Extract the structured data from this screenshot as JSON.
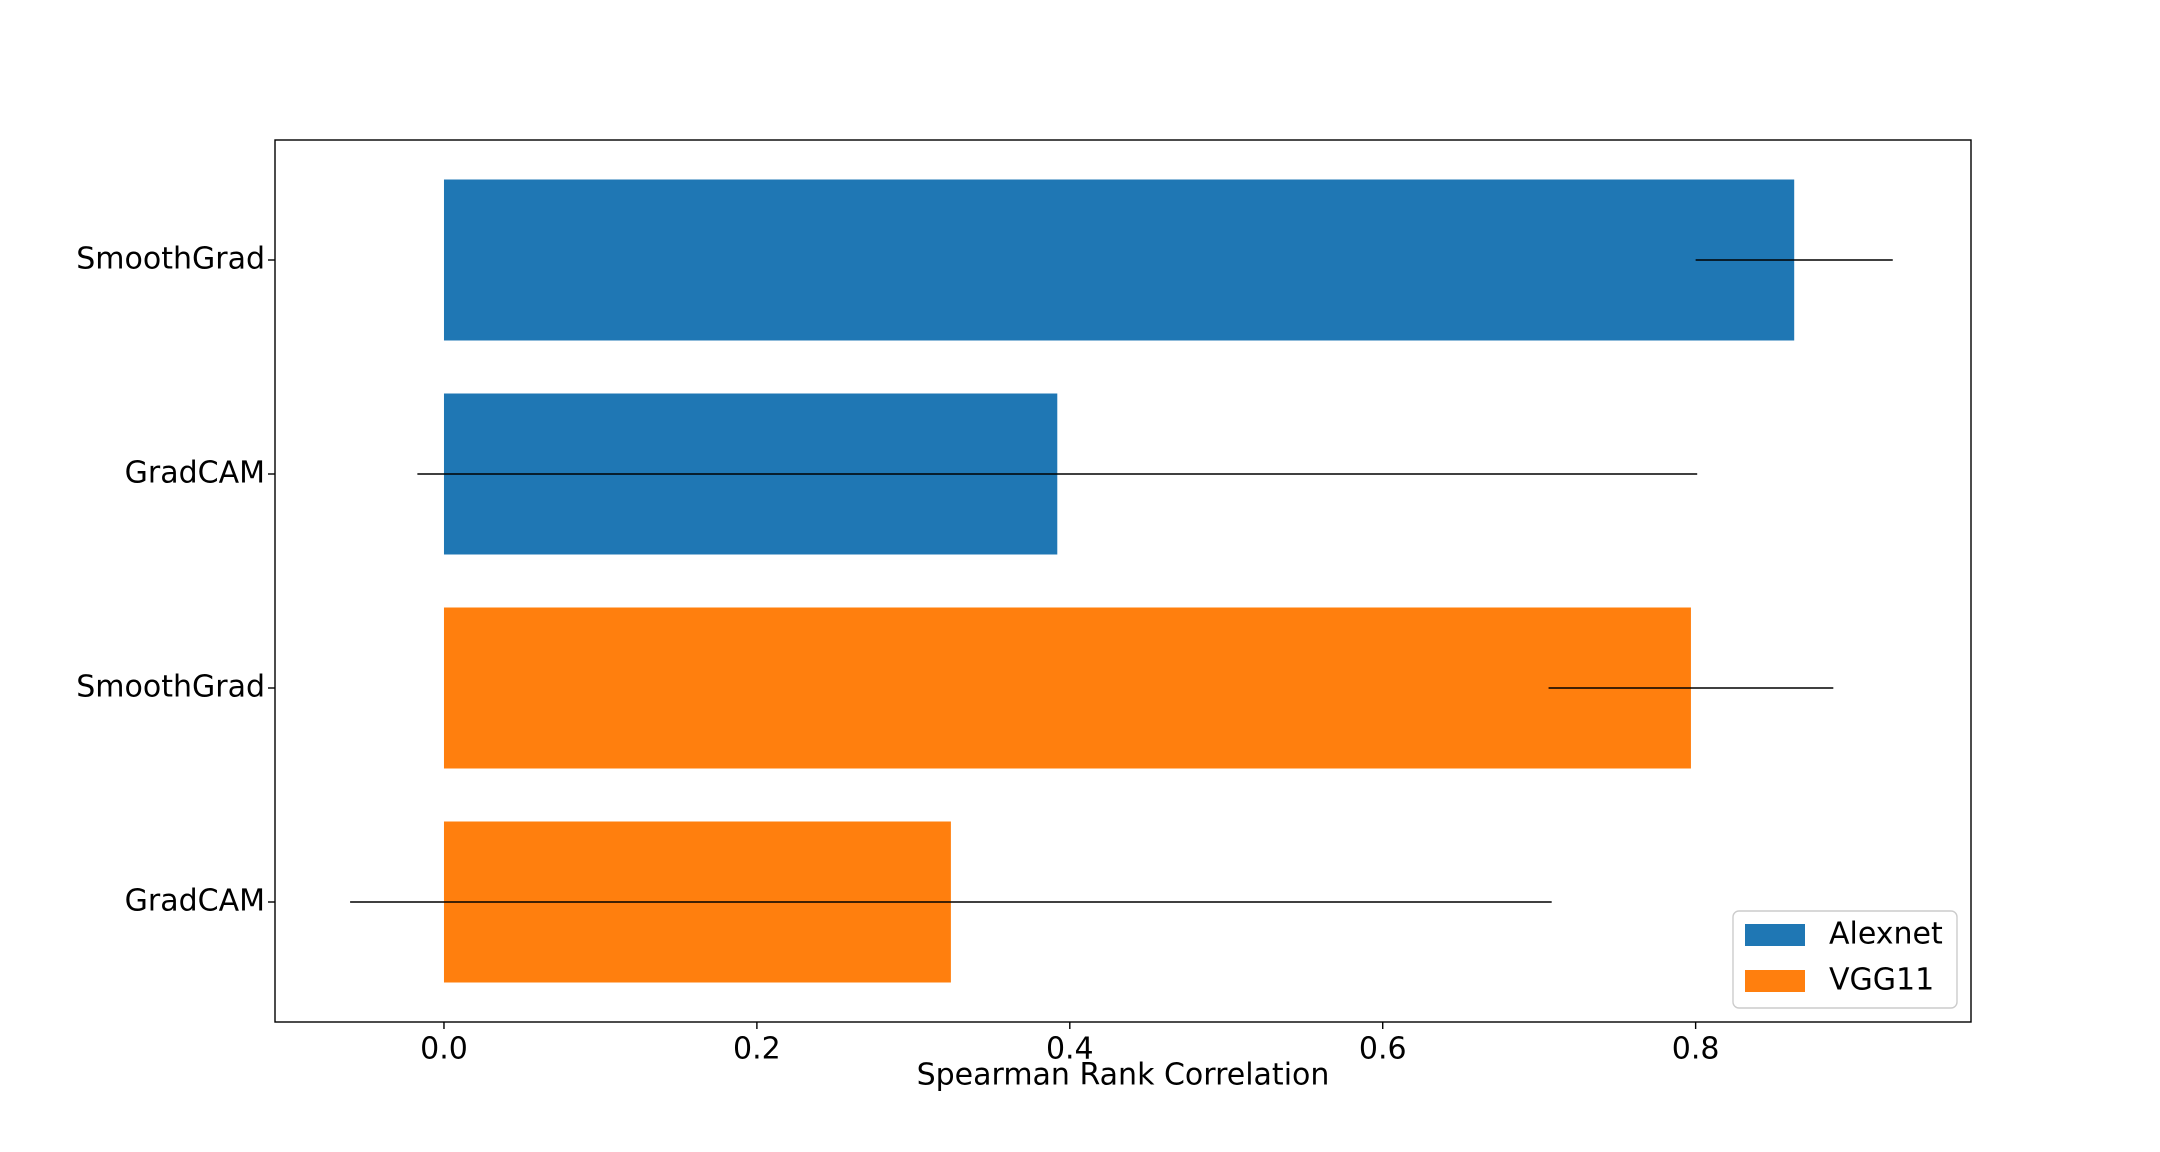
{
  "chart_data": {
    "type": "barh",
    "x_label": "Spearman Rank Correlation",
    "categories": [
      "SmoothGrad",
      "GradCAM",
      "SmoothGrad",
      "GradCAM"
    ],
    "series": [
      {
        "name": "Alexnet",
        "color": "#1f77b4",
        "values": [
          0.863,
          0.392,
          null,
          null
        ],
        "errors": [
          0.063,
          0.409,
          null,
          null
        ]
      },
      {
        "name": "VGG11",
        "color": "#ff7f0e",
        "values": [
          null,
          null,
          0.797,
          0.324
        ],
        "errors": [
          null,
          null,
          0.091,
          0.384
        ]
      }
    ],
    "xlim": [
      -0.108,
      0.976
    ],
    "xticks": [
      {
        "value": 0,
        "label": "0.0"
      },
      0.2,
      0.4,
      0.6,
      0.8
    ],
    "error_color": "#000000",
    "legend": "lower right"
  }
}
